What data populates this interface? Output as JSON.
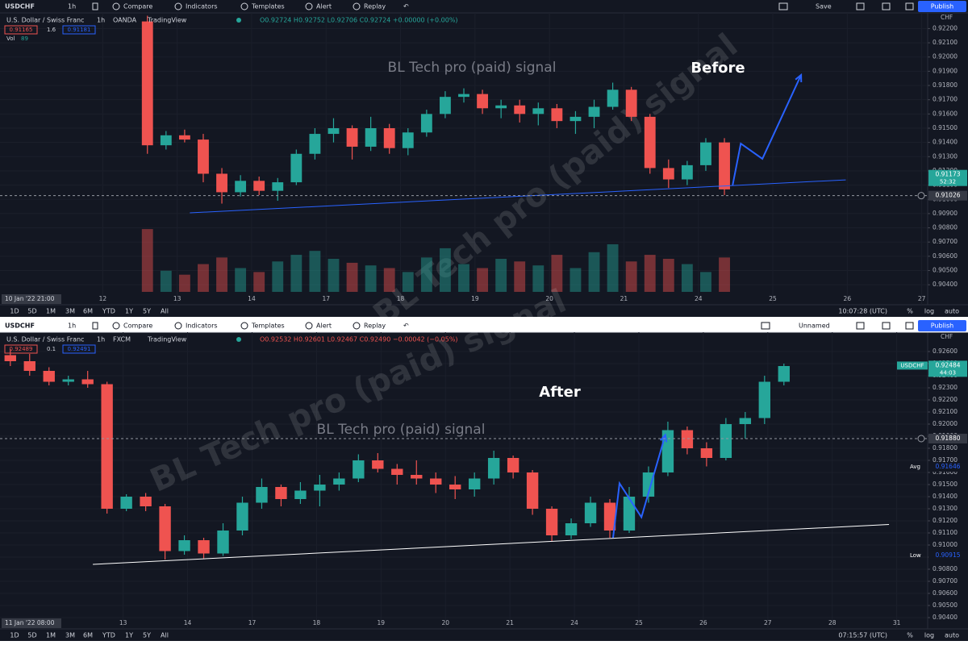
{
  "ui": {
    "panels": [
      {
        "toolbar": {
          "symbol": "USDCHF",
          "interval": "1h",
          "buttons": [
            "Compare",
            "Indicators",
            "Templates",
            "Alert",
            "Replay"
          ],
          "layout": "Save",
          "publish": "Publish"
        },
        "legend": {
          "name": "U.S. Dollar / Swiss Franc",
          "interval": "1h",
          "source": "OANDA",
          "platform": "TradingView",
          "ohlc": "O0.92724 H0.92752 L0.92706 C0.92724 +0.00000 (+0.00%)",
          "ohlc_color": "#26a69a"
        },
        "bid": "0.91165",
        "spread": "1.6",
        "ask": "0.91181",
        "volume_label": "Vol",
        "volume_value": "89",
        "currency": "CHF",
        "date_label": "10 Jan '22 21:00",
        "ranges": [
          "1D",
          "5D",
          "1M",
          "3M",
          "6M",
          "YTD",
          "1Y",
          "5Y",
          "All"
        ],
        "clock": "10:07:28 (UTC)",
        "scale_options": [
          "%",
          "log",
          "auto"
        ]
      },
      {
        "toolbar": {
          "symbol": "USDCHF",
          "interval": "1h",
          "buttons": [
            "Compare",
            "Indicators",
            "Templates",
            "Alert",
            "Replay"
          ],
          "layout": "Unnamed",
          "publish": "Publish"
        },
        "legend": {
          "name": "U.S. Dollar / Swiss Franc",
          "interval": "1h",
          "source": "FXCM",
          "platform": "TradingView",
          "ohlc": "O0.92532 H0.92601 L0.92467 C0.92490 −0.00042 (−0.05%)",
          "ohlc_color": "#ef5350"
        },
        "bid": "0.92489",
        "spread": "0.1",
        "ask": "0.92491",
        "currency": "CHF",
        "date_label": "11 Jan '22 08:00",
        "ranges": [
          "1D",
          "5D",
          "1M",
          "3M",
          "6M",
          "YTD",
          "1Y",
          "5Y",
          "All"
        ],
        "clock": "07:15:57 (UTC)",
        "scale_options": [
          "%",
          "log",
          "auto"
        ]
      }
    ]
  },
  "chart_data": [
    {
      "type": "candlestick",
      "title": "Before",
      "watermark": "BL Tech pro (paid) signal",
      "grid": true,
      "up_color": "#26a69a",
      "down_color": "#ef5350",
      "xlim": [
        -0.38,
        12.08
      ],
      "xticks": [
        {
          "value": 1,
          "label": "12"
        },
        {
          "value": 2,
          "label": "13"
        },
        {
          "value": 3,
          "label": "14"
        },
        {
          "value": 4,
          "label": "17"
        },
        {
          "value": 5,
          "label": "18"
        },
        {
          "value": 6,
          "label": "19"
        },
        {
          "value": 7,
          "label": "20"
        },
        {
          "value": 8,
          "label": "21"
        },
        {
          "value": 9,
          "label": "24"
        },
        {
          "value": 10,
          "label": "25"
        },
        {
          "value": 11,
          "label": "26"
        },
        {
          "value": 12,
          "label": "27"
        }
      ],
      "ylim": [
        0.9035,
        0.9231
      ],
      "yticks": [
        {
          "value": 0.904,
          "label": "0.90400"
        },
        {
          "value": 0.905,
          "label": "0.90500"
        },
        {
          "value": 0.906,
          "label": "0.90600"
        },
        {
          "value": 0.907,
          "label": "0.90700"
        },
        {
          "value": 0.908,
          "label": "0.90800"
        },
        {
          "value": 0.909,
          "label": "0.90900"
        },
        {
          "value": 0.91,
          "label": "0.91000"
        },
        {
          "value": 0.911,
          "label": "0.91100"
        },
        {
          "value": 0.912,
          "label": "0.91200"
        },
        {
          "value": 0.913,
          "label": "0.91300"
        },
        {
          "value": 0.914,
          "label": "0.91400"
        },
        {
          "value": 0.915,
          "label": "0.91500"
        },
        {
          "value": 0.916,
          "label": "0.91600"
        },
        {
          "value": 0.917,
          "label": "0.91700"
        },
        {
          "value": 0.918,
          "label": "0.91800"
        },
        {
          "value": 0.919,
          "label": "0.91900"
        },
        {
          "value": 0.92,
          "label": "0.92000"
        },
        {
          "value": 0.921,
          "label": "0.92100"
        },
        {
          "value": 0.922,
          "label": "0.92200"
        }
      ],
      "candles": {
        "x": [
          1.6,
          1.85,
          2.1,
          2.35,
          2.6,
          2.85,
          3.1,
          3.35,
          3.6,
          3.85,
          4.1,
          4.35,
          4.6,
          4.85,
          5.1,
          5.35,
          5.6,
          5.85,
          6.1,
          6.35,
          6.6,
          6.85,
          7.1,
          7.35,
          7.6,
          7.85,
          8.1,
          8.35,
          8.6,
          8.85,
          9.1,
          9.35
        ],
        "open": [
          0.9225,
          0.9138,
          0.9145,
          0.9142,
          0.9118,
          0.9105,
          0.9113,
          0.9106,
          0.9112,
          0.9132,
          0.9146,
          0.915,
          0.9137,
          0.915,
          0.9136,
          0.9147,
          0.916,
          0.9172,
          0.9174,
          0.9164,
          0.9166,
          0.916,
          0.9164,
          0.9155,
          0.9158,
          0.9165,
          0.9177,
          0.9158,
          0.9122,
          0.9114,
          0.9124,
          0.914
        ],
        "high": [
          0.9229,
          0.9148,
          0.9149,
          0.9146,
          0.9122,
          0.9117,
          0.9116,
          0.9115,
          0.9135,
          0.915,
          0.9157,
          0.9152,
          0.9158,
          0.9153,
          0.915,
          0.9163,
          0.9176,
          0.9178,
          0.9177,
          0.917,
          0.917,
          0.9168,
          0.9167,
          0.9162,
          0.917,
          0.9182,
          0.9179,
          0.916,
          0.9128,
          0.9127,
          0.9143,
          0.9143
        ],
        "low": [
          0.9132,
          0.9135,
          0.914,
          0.9112,
          0.9097,
          0.9102,
          0.9103,
          0.9099,
          0.911,
          0.9128,
          0.914,
          0.9128,
          0.9134,
          0.9132,
          0.9131,
          0.9144,
          0.9157,
          0.9168,
          0.916,
          0.9157,
          0.9154,
          0.9152,
          0.915,
          0.9146,
          0.915,
          0.9163,
          0.9155,
          0.9118,
          0.9108,
          0.911,
          0.912,
          0.9103
        ],
        "close": [
          0.9138,
          0.9145,
          0.9142,
          0.9118,
          0.9105,
          0.9113,
          0.9106,
          0.9112,
          0.9132,
          0.9146,
          0.915,
          0.9137,
          0.915,
          0.9136,
          0.9147,
          0.916,
          0.9172,
          0.9174,
          0.9164,
          0.9166,
          0.916,
          0.9164,
          0.9155,
          0.9158,
          0.9165,
          0.9177,
          0.9158,
          0.9122,
          0.9114,
          0.9124,
          0.914,
          0.9107
        ]
      },
      "volume": {
        "values": [
          950,
          320,
          260,
          420,
          520,
          360,
          300,
          460,
          560,
          620,
          500,
          440,
          400,
          360,
          300,
          520,
          660,
          420,
          360,
          500,
          460,
          400,
          560,
          360,
          600,
          720,
          460,
          560,
          500,
          420,
          300,
          520
        ],
        "ylim": [
          0,
          1000
        ]
      },
      "annotations": [
        {
          "x": [
            2.17,
            10.98
          ],
          "y": [
            0.90905,
            0.91137
          ],
          "color": "#2962ff",
          "arrow": false
        },
        {
          "x": [
            9.46,
            9.57,
            9.86,
            10.38
          ],
          "y": [
            0.91098,
            0.91392,
            0.91285,
            0.91874
          ],
          "color": "#2962ff",
          "arrow": true
        }
      ],
      "price_levels": [
        {
          "value": 0.91173,
          "kind": "last",
          "text": "52:32",
          "color": "#26a69a"
        },
        {
          "value": 0.91026,
          "kind": "crosshair"
        }
      ]
    },
    {
      "type": "candlestick",
      "title": "After",
      "watermark": "BL Tech pro (paid) signal",
      "grid": true,
      "up_color": "#26a69a",
      "down_color": "#ef5350",
      "xlim": [
        -0.91,
        13.48
      ],
      "xticks": [
        {
          "value": 1,
          "label": "13"
        },
        {
          "value": 2,
          "label": "14"
        },
        {
          "value": 3,
          "label": "17"
        },
        {
          "value": 4,
          "label": "18"
        },
        {
          "value": 5,
          "label": "19"
        },
        {
          "value": 6,
          "label": "20"
        },
        {
          "value": 7,
          "label": "21"
        },
        {
          "value": 8,
          "label": "24"
        },
        {
          "value": 9,
          "label": "25"
        },
        {
          "value": 10,
          "label": "26"
        },
        {
          "value": 11,
          "label": "27"
        },
        {
          "value": 12,
          "label": "28"
        },
        {
          "value": 13,
          "label": "31"
        }
      ],
      "ylim": [
        0.904,
        0.9276
      ],
      "yticks": [
        {
          "value": 0.904,
          "label": "0.90400"
        },
        {
          "value": 0.905,
          "label": "0.90500"
        },
        {
          "value": 0.906,
          "label": "0.90600"
        },
        {
          "value": 0.907,
          "label": "0.90700"
        },
        {
          "value": 0.908,
          "label": "0.90800"
        },
        {
          "value": 0.909,
          "label": "0.90900"
        },
        {
          "value": 0.91,
          "label": "0.91000"
        },
        {
          "value": 0.911,
          "label": "0.91100"
        },
        {
          "value": 0.912,
          "label": "0.91200"
        },
        {
          "value": 0.913,
          "label": "0.91300"
        },
        {
          "value": 0.914,
          "label": "0.91400"
        },
        {
          "value": 0.915,
          "label": "0.91500"
        },
        {
          "value": 0.916,
          "label": "0.91600"
        },
        {
          "value": 0.917,
          "label": "0.91700"
        },
        {
          "value": 0.918,
          "label": "0.91800"
        },
        {
          "value": 0.919,
          "label": "0.91900"
        },
        {
          "value": 0.92,
          "label": "0.92000"
        },
        {
          "value": 0.921,
          "label": "0.92100"
        },
        {
          "value": 0.922,
          "label": "0.92200"
        },
        {
          "value": 0.923,
          "label": "0.92300"
        },
        {
          "value": 0.924,
          "label": "0.92400"
        },
        {
          "value": 0.925,
          "label": "0.92500"
        },
        {
          "value": 0.926,
          "label": "0.92600"
        }
      ],
      "candles": {
        "x": [
          -0.75,
          -0.45,
          -0.15,
          0.15,
          0.45,
          0.75,
          1.05,
          1.35,
          1.65,
          1.95,
          2.25,
          2.55,
          2.85,
          3.15,
          3.45,
          3.75,
          4.05,
          4.35,
          4.65,
          4.95,
          5.25,
          5.55,
          5.85,
          6.15,
          6.45,
          6.75,
          7.05,
          7.35,
          7.65,
          7.95,
          8.25,
          8.55,
          8.85,
          9.15,
          9.45,
          9.75,
          10.05,
          10.35,
          10.65,
          10.95,
          11.25
        ],
        "open": [
          0.9257,
          0.9252,
          0.9244,
          0.9235,
          0.9237,
          0.9233,
          0.913,
          0.914,
          0.9132,
          0.9095,
          0.9104,
          0.9093,
          0.9112,
          0.9135,
          0.9148,
          0.9138,
          0.9145,
          0.915,
          0.9155,
          0.917,
          0.9163,
          0.9158,
          0.9155,
          0.915,
          0.9146,
          0.9155,
          0.9172,
          0.916,
          0.913,
          0.9108,
          0.9118,
          0.9135,
          0.9112,
          0.914,
          0.916,
          0.9195,
          0.918,
          0.9172,
          0.92,
          0.9205,
          0.9235
        ],
        "high": [
          0.9262,
          0.9258,
          0.9247,
          0.924,
          0.9244,
          0.9235,
          0.9142,
          0.9143,
          0.9134,
          0.9108,
          0.9106,
          0.9118,
          0.914,
          0.9155,
          0.915,
          0.9152,
          0.9158,
          0.916,
          0.9175,
          0.9176,
          0.9167,
          0.917,
          0.916,
          0.9157,
          0.916,
          0.9178,
          0.9174,
          0.9162,
          0.9132,
          0.9122,
          0.914,
          0.9138,
          0.9148,
          0.9165,
          0.9202,
          0.9198,
          0.9185,
          0.9205,
          0.921,
          0.924,
          0.925
        ],
        "low": [
          0.9248,
          0.924,
          0.9232,
          0.9232,
          0.923,
          0.9126,
          0.9128,
          0.9128,
          0.9088,
          0.9092,
          0.9089,
          0.9091,
          0.9108,
          0.913,
          0.9132,
          0.9134,
          0.9132,
          0.9145,
          0.9152,
          0.916,
          0.915,
          0.915,
          0.9143,
          0.9138,
          0.914,
          0.915,
          0.9155,
          0.9125,
          0.9103,
          0.9105,
          0.9115,
          0.9106,
          0.911,
          0.9135,
          0.9157,
          0.9175,
          0.9165,
          0.917,
          0.9188,
          0.92,
          0.9232
        ],
        "close": [
          0.9252,
          0.9244,
          0.9235,
          0.9237,
          0.9233,
          0.913,
          0.914,
          0.9132,
          0.9095,
          0.9104,
          0.9093,
          0.9112,
          0.9135,
          0.9148,
          0.9138,
          0.9145,
          0.915,
          0.9155,
          0.917,
          0.9163,
          0.9158,
          0.9155,
          0.915,
          0.9146,
          0.9155,
          0.9172,
          0.916,
          0.913,
          0.9108,
          0.9118,
          0.9135,
          0.9112,
          0.914,
          0.916,
          0.9195,
          0.918,
          0.9172,
          0.92,
          0.9205,
          0.9235,
          0.9248
        ]
      },
      "annotations": [
        {
          "x": [
            0.53,
            12.88
          ],
          "y": [
            0.9084,
            0.9117
          ],
          "color": "#ffffff",
          "arrow": false
        },
        {
          "x": [
            8.6,
            8.7,
            9.04,
            9.41
          ],
          "y": [
            0.9106,
            0.9151,
            0.9123,
            0.9191
          ],
          "color": "#2962ff",
          "arrow": true
        }
      ],
      "price_levels": [
        {
          "value": 0.92484,
          "kind": "last",
          "tag": "USDCHF",
          "text": "44:03",
          "color": "#26a69a"
        },
        {
          "value": {
            "value": 0.9188,
            "label": "0.91880"
          },
          "kind": "crosshair"
        },
        {
          "value": 0.91646,
          "kind": "stat",
          "tag": "Avg",
          "color": "#2962ff"
        },
        {
          "value": 0.90915,
          "kind": "stat",
          "tag": "Low",
          "color": "#2962ff"
        }
      ]
    }
  ]
}
